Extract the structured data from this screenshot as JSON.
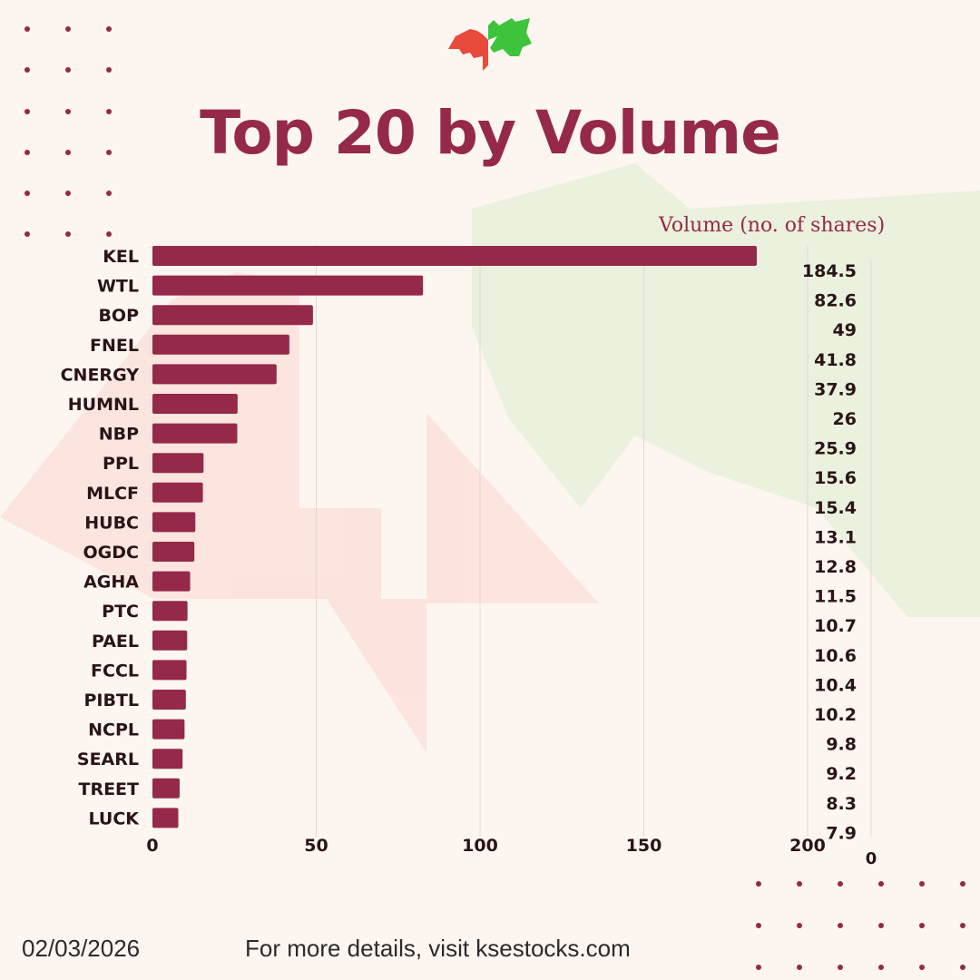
{
  "page": {
    "title": "Top 20 by Volume",
    "date": "02/03/2026",
    "footer_text": "For more details, visit ksestocks.com",
    "logo_icon": "bull-bear-k-logo-icon",
    "colors": {
      "bar": "#95294a",
      "title": "#95294a",
      "background": "#fdf5f0",
      "bear": "#e84a3b",
      "bull": "#3ec43a"
    }
  },
  "chart_data": {
    "type": "bar",
    "orientation": "horizontal",
    "xlabel": "Volume (no. of shares)",
    "categories": [
      "KEL",
      "WTL",
      "BOP",
      "FNEL",
      "CNERGY",
      "HUMNL",
      "NBP",
      "PPL",
      "MLCF",
      "HUBC",
      "OGDC",
      "AGHA",
      "PTC",
      "PAEL",
      "FCCL",
      "PIBTL",
      "NCPL",
      "SEARL",
      "TREET",
      "LUCK"
    ],
    "values": [
      184.5,
      82.6,
      49,
      41.8,
      37.9,
      26,
      25.9,
      15.6,
      15.4,
      13.1,
      12.8,
      11.5,
      10.7,
      10.6,
      10.4,
      10.2,
      9.8,
      9.2,
      8.3,
      7.9
    ],
    "value_labels": [
      "184.5",
      "82.6",
      "49",
      "41.8",
      "37.9",
      "26",
      "25.9",
      "15.6",
      "15.4",
      "13.1",
      "12.8",
      "11.5",
      "10.7",
      "10.6",
      "10.4",
      "10.2",
      "9.8",
      "9.2",
      "8.3",
      "7.9"
    ],
    "x_ticks": [
      0,
      50,
      100,
      150,
      200
    ],
    "xlim": [
      0,
      200
    ],
    "secondary_axis_tick": "0",
    "grid": true,
    "legend": "none"
  }
}
